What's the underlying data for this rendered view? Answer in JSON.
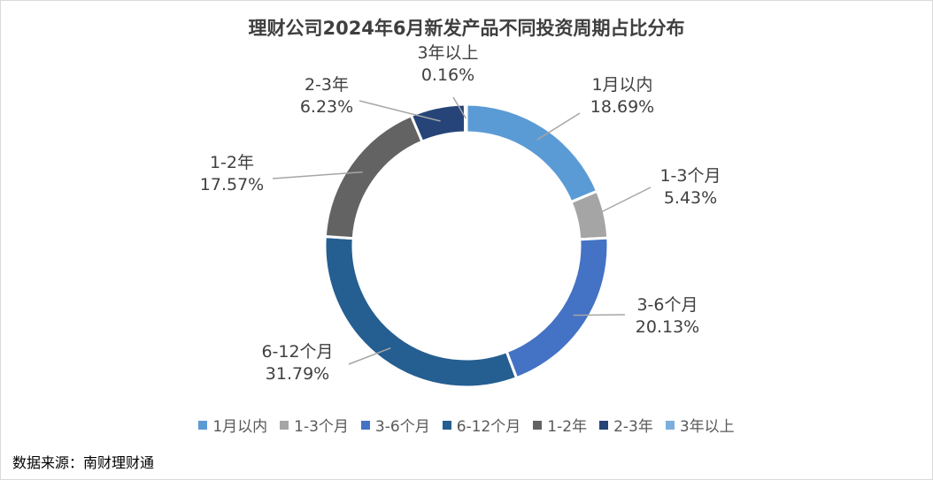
{
  "chart_data": {
    "type": "pie",
    "variant": "donut",
    "title": "理财公司2024年6月新发产品不同投资周期占比分布",
    "categories": [
      "1月以内",
      "1-3个月",
      "3-6个月",
      "6-12个月",
      "1-2年",
      "2-3年",
      "3年以上"
    ],
    "values": [
      18.69,
      5.43,
      20.13,
      31.79,
      17.57,
      6.23,
      0.16
    ],
    "value_labels": [
      "18.69%",
      "5.43%",
      "20.13%",
      "31.79%",
      "17.57%",
      "6.23%",
      "0.16%"
    ],
    "colors": [
      "#5b9bd5",
      "#a5a5a5",
      "#4472c4",
      "#255e91",
      "#636363",
      "#264478",
      "#7cafdd"
    ],
    "legend": "bottom"
  },
  "source": "数据来源：南财理财通"
}
